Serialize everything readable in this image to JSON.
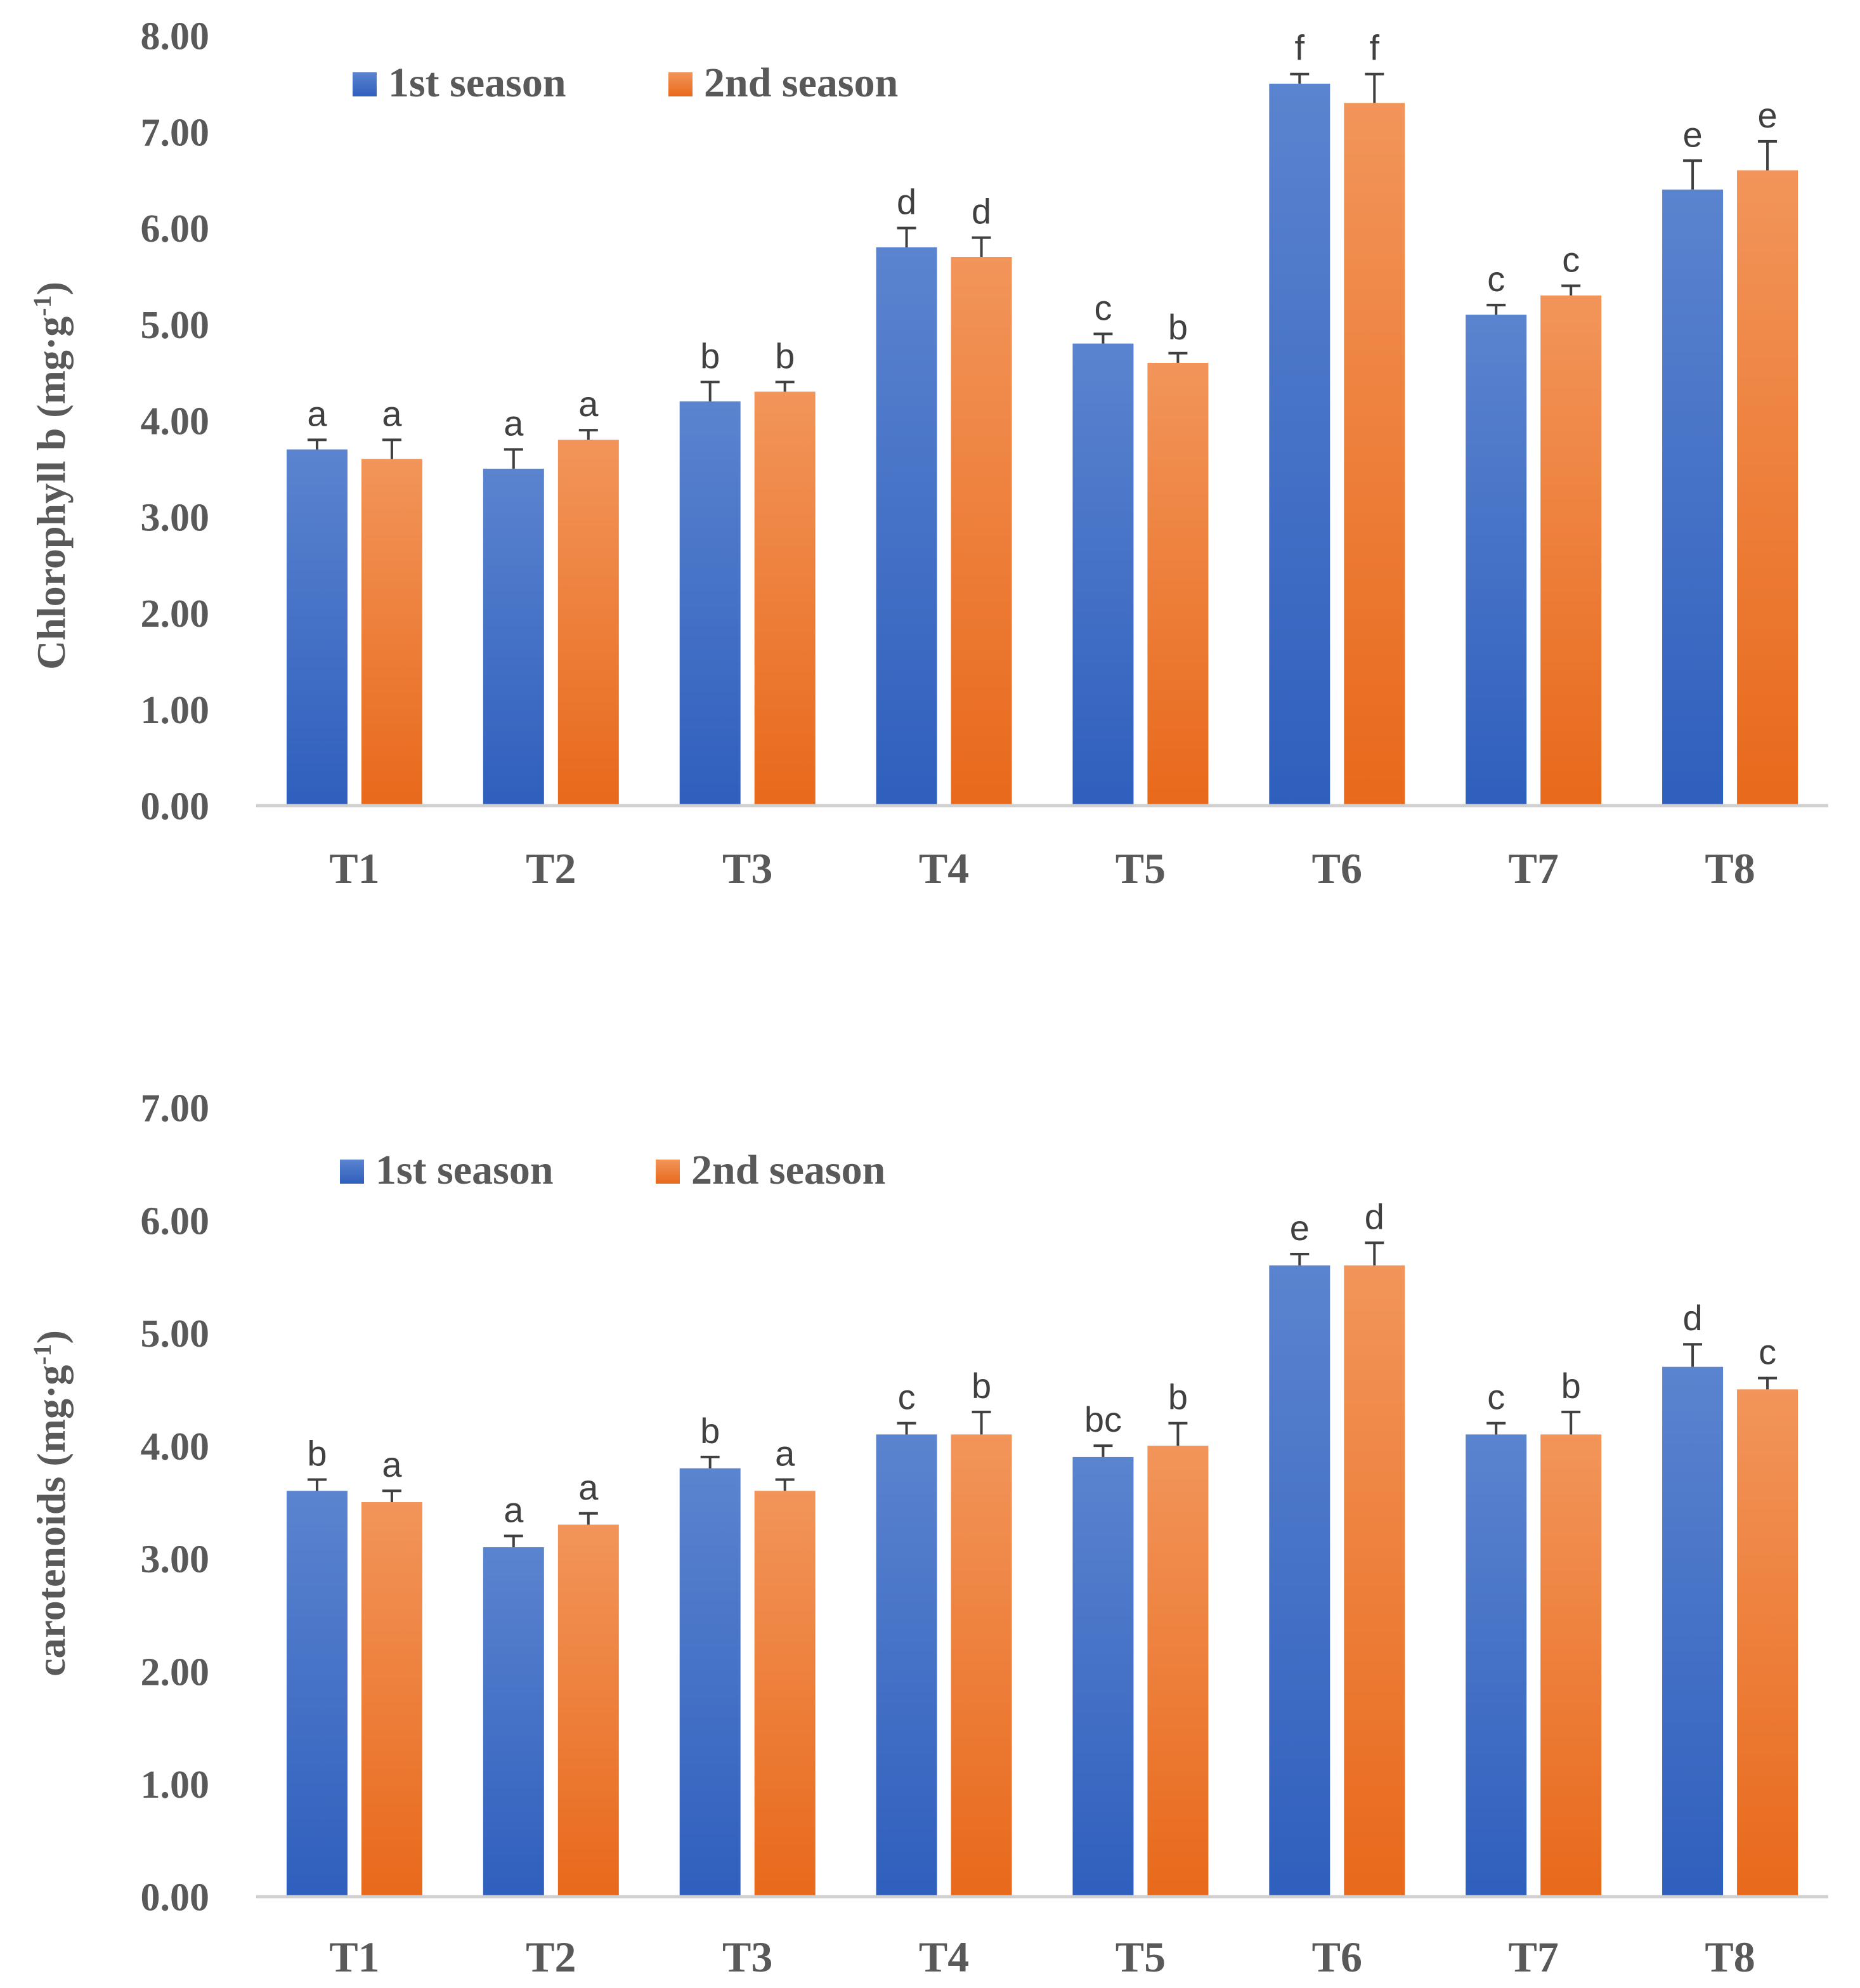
{
  "colors": {
    "series1_top": "#5b84cf",
    "series1_bottom": "#2f5fbd",
    "series2_top": "#f2955a",
    "series2_bottom": "#e8691b",
    "axis": "#d0d0d0",
    "text": "#595959",
    "error": "#404040"
  },
  "chart_data": [
    {
      "type": "bar",
      "title": "",
      "ylabel_main": "Chlorophyll b (mg·g",
      "ylabel_sup": "-1",
      "ylabel_tail": ")",
      "ylim": [
        0,
        8
      ],
      "yticks": [
        "0.00",
        "1.00",
        "2.00",
        "3.00",
        "4.00",
        "5.00",
        "6.00",
        "7.00",
        "8.00"
      ],
      "categories": [
        "T1",
        "T2",
        "T3",
        "T4",
        "T5",
        "T6",
        "T7",
        "T8"
      ],
      "legend": [
        "1st season",
        "2nd season"
      ],
      "legend_position": "top-left",
      "series": [
        {
          "name": "1st season",
          "values": [
            3.7,
            3.5,
            4.2,
            5.8,
            4.8,
            7.5,
            5.1,
            6.4
          ],
          "errors": [
            0.1,
            0.2,
            0.2,
            0.2,
            0.1,
            0.1,
            0.1,
            0.3
          ],
          "letters": [
            "a",
            "a",
            "b",
            "d",
            "c",
            "f",
            "c",
            "e"
          ]
        },
        {
          "name": "2nd season",
          "values": [
            3.6,
            3.8,
            4.3,
            5.7,
            4.6,
            7.3,
            5.3,
            6.6
          ],
          "errors": [
            0.2,
            0.1,
            0.1,
            0.2,
            0.1,
            0.3,
            0.1,
            0.3
          ],
          "letters": [
            "a",
            "a",
            "b",
            "d",
            "b",
            "f",
            "c",
            "e"
          ]
        }
      ]
    },
    {
      "type": "bar",
      "title": "",
      "ylabel_main": "carotenoids (mg·g",
      "ylabel_sup": "-1",
      "ylabel_tail": ")",
      "ylim": [
        0,
        7
      ],
      "yticks": [
        "0.00",
        "1.00",
        "2.00",
        "3.00",
        "4.00",
        "5.00",
        "6.00",
        "7.00"
      ],
      "categories": [
        "T1",
        "T2",
        "T3",
        "T4",
        "T5",
        "T6",
        "T7",
        "T8"
      ],
      "legend": [
        "1st season",
        "2nd season"
      ],
      "legend_position": "top-left",
      "series": [
        {
          "name": "1st season",
          "values": [
            3.6,
            3.1,
            3.8,
            4.1,
            3.9,
            5.6,
            4.1,
            4.7
          ],
          "errors": [
            0.1,
            0.1,
            0.1,
            0.1,
            0.1,
            0.1,
            0.1,
            0.2
          ],
          "letters": [
            "b",
            "a",
            "b",
            "c",
            "bc",
            "e",
            "c",
            "d"
          ]
        },
        {
          "name": "2nd season",
          "values": [
            3.5,
            3.3,
            3.6,
            4.1,
            4.0,
            5.6,
            4.1,
            4.5
          ],
          "errors": [
            0.1,
            0.1,
            0.1,
            0.2,
            0.2,
            0.2,
            0.2,
            0.1
          ],
          "letters": [
            "a",
            "a",
            "a",
            "b",
            "b",
            "d",
            "b",
            "c"
          ]
        }
      ]
    }
  ]
}
